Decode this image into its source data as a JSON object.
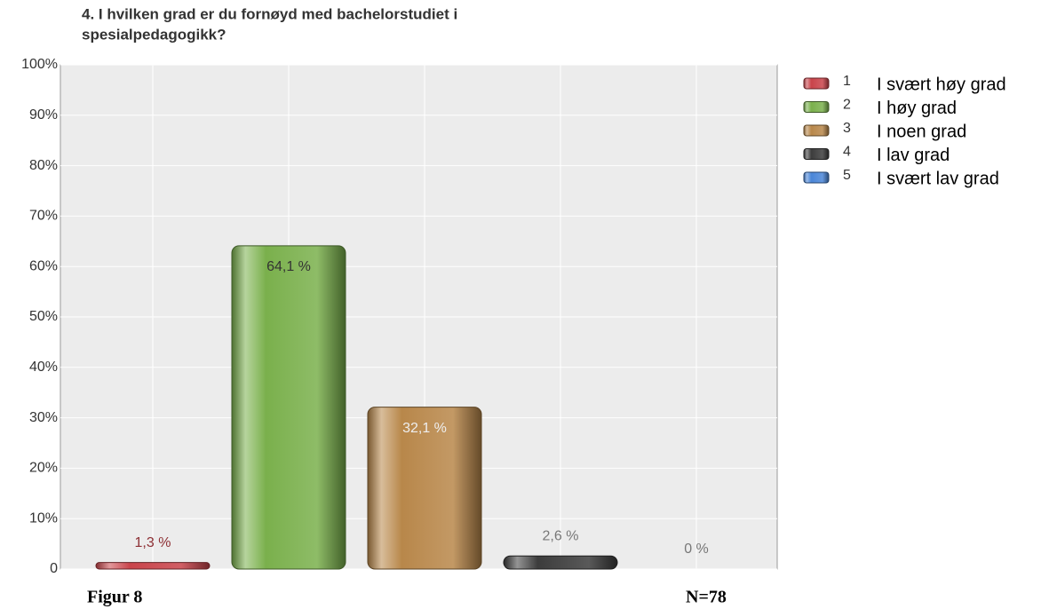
{
  "chart_data": {
    "type": "bar",
    "title": [
      "4. I hvilken grad er du fornøyd med bachelorstudiet i",
      "spesialpedagogikk?"
    ],
    "categories": [
      "1",
      "2",
      "3",
      "4",
      "5"
    ],
    "legend": [
      "I svært høy grad",
      "I høy grad",
      "I noen grad",
      "I lav grad",
      "I svært lav grad"
    ],
    "values": [
      1.3,
      64.1,
      32.1,
      2.6,
      0
    ],
    "value_labels": [
      "1,3 %",
      "64,1 %",
      "32,1 %",
      "2,6 %",
      "0 %"
    ],
    "colors": [
      "#c9434a",
      "#7ab04c",
      "#b8874a",
      "#3c3c3c",
      "#4a86d8"
    ],
    "ylim": [
      0,
      100
    ],
    "yticks": [
      0,
      {
        "value": 10,
        "label": "10%"
      },
      {
        "value": 20,
        "label": "20%"
      },
      {
        "value": 30,
        "label": "30%"
      },
      {
        "value": 40,
        "label": "40%"
      },
      {
        "value": 50,
        "label": "50%"
      },
      {
        "value": 60,
        "label": "60%"
      },
      {
        "value": 70,
        "label": "70%"
      },
      {
        "value": 80,
        "label": "80%"
      },
      {
        "value": 90,
        "label": "90%"
      },
      {
        "value": 100,
        "label": "100%"
      }
    ],
    "grid": true,
    "legend_position": "right",
    "figure_label": "Figur 8",
    "sample_size": "N=78"
  }
}
